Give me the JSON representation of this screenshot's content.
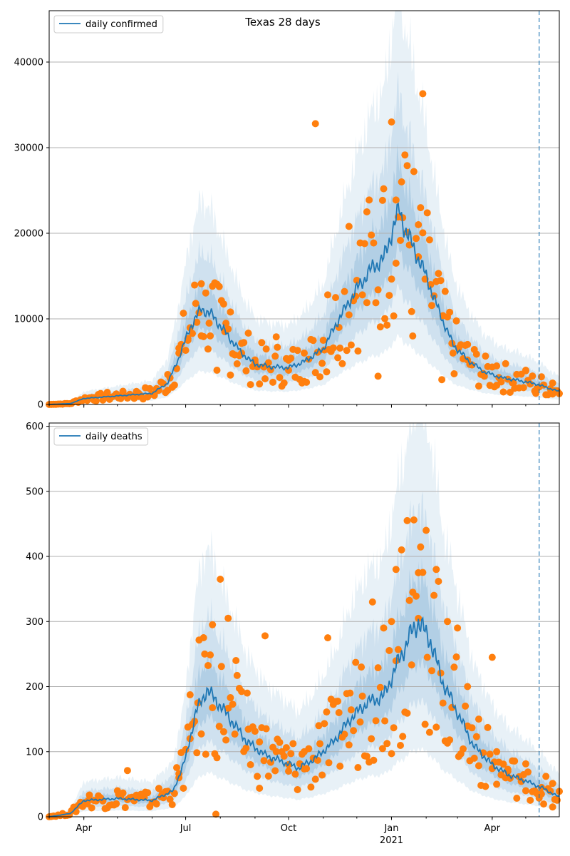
{
  "chart_data": [
    {
      "type": "line",
      "title": "Texas 28 days",
      "legend": {
        "label": "daily confirmed",
        "placement": "top-left"
      },
      "ylim": [
        0,
        46000
      ],
      "yticks": [
        0,
        10000,
        20000,
        30000,
        40000
      ],
      "grid": "y",
      "x_range": [
        "2020-03-01",
        "2021-05-31"
      ],
      "x_ticks": [
        {
          "date": "2020-04-01",
          "label": "Apr"
        },
        {
          "date": "2020-07-01",
          "label": "Jul"
        },
        {
          "date": "2020-10-01",
          "label": "Oct"
        },
        {
          "date": "2021-01-01",
          "label": "Jan"
        },
        {
          "date": "2021-04-01",
          "label": "Apr"
        }
      ],
      "vline_date": "2021-05-13",
      "line_keypoints": [
        [
          "2020-03-01",
          0
        ],
        [
          "2020-03-20",
          100
        ],
        [
          "2020-04-01",
          700
        ],
        [
          "2020-05-01",
          1000
        ],
        [
          "2020-06-01",
          1300
        ],
        [
          "2020-06-15",
          2500
        ],
        [
          "2020-06-25",
          5500
        ],
        [
          "2020-07-05",
          9000
        ],
        [
          "2020-07-15",
          11200
        ],
        [
          "2020-07-25",
          10400
        ],
        [
          "2020-08-05",
          8500
        ],
        [
          "2020-08-20",
          6000
        ],
        [
          "2020-09-01",
          4700
        ],
        [
          "2020-09-15",
          4400
        ],
        [
          "2020-10-01",
          4300
        ],
        [
          "2020-10-15",
          5000
        ],
        [
          "2020-11-01",
          6500
        ],
        [
          "2020-11-15",
          10000
        ],
        [
          "2020-12-01",
          13500
        ],
        [
          "2020-12-15",
          16000
        ],
        [
          "2020-12-25",
          17000
        ],
        [
          "2021-01-01",
          20000
        ],
        [
          "2021-01-08",
          22800
        ],
        [
          "2021-01-13",
          20500
        ],
        [
          "2021-01-20",
          18500
        ],
        [
          "2021-02-01",
          15000
        ],
        [
          "2021-02-12",
          11000
        ],
        [
          "2021-02-25",
          7000
        ],
        [
          "2021-03-10",
          5200
        ],
        [
          "2021-03-25",
          3800
        ],
        [
          "2021-04-10",
          3100
        ],
        [
          "2021-04-25",
          2800
        ],
        [
          "2021-05-10",
          2400
        ],
        [
          "2021-05-31",
          1500
        ]
      ],
      "points": [
        [
          "2020-04-10",
          800
        ],
        [
          "2020-04-20",
          1000
        ],
        [
          "2020-05-05",
          1100
        ],
        [
          "2020-05-20",
          1300
        ],
        [
          "2020-06-05",
          1600
        ],
        [
          "2020-06-15",
          3500
        ],
        [
          "2020-06-25",
          6000
        ],
        [
          "2020-07-03",
          7500
        ],
        [
          "2020-07-10",
          11800
        ],
        [
          "2020-07-15",
          14100
        ],
        [
          "2020-07-22",
          9500
        ],
        [
          "2020-07-29",
          4000
        ],
        [
          "2020-08-05",
          8500
        ],
        [
          "2020-08-10",
          10800
        ],
        [
          "2020-08-20",
          6000
        ],
        [
          "2020-09-01",
          5200
        ],
        [
          "2020-09-10",
          3000
        ],
        [
          "2020-09-20",
          7900
        ],
        [
          "2020-10-01",
          4000
        ],
        [
          "2020-10-15",
          6000
        ],
        [
          "2020-10-25",
          32800
        ],
        [
          "2020-11-01",
          7500
        ],
        [
          "2020-11-05",
          12800
        ],
        [
          "2020-11-15",
          9000
        ],
        [
          "2020-11-24",
          20800
        ],
        [
          "2020-12-01",
          14500
        ],
        [
          "2020-12-10",
          22500
        ],
        [
          "2020-12-20",
          3300
        ],
        [
          "2020-12-25",
          25200
        ],
        [
          "2021-01-01",
          33000
        ],
        [
          "2021-01-05",
          16500
        ],
        [
          "2021-01-10",
          26000
        ],
        [
          "2021-01-15",
          27900
        ],
        [
          "2021-01-20",
          8000
        ],
        [
          "2021-01-25",
          21000
        ],
        [
          "2021-01-29",
          36300
        ],
        [
          "2021-02-05",
          14000
        ],
        [
          "2021-02-15",
          2900
        ],
        [
          "2021-02-25",
          6000
        ],
        [
          "2021-03-10",
          5200
        ],
        [
          "2021-03-25",
          3300
        ],
        [
          "2021-04-05",
          4500
        ],
        [
          "2021-04-20",
          2500
        ],
        [
          "2021-05-01",
          4000
        ],
        [
          "2021-05-10",
          1300
        ],
        [
          "2021-05-25",
          2500
        ]
      ]
    },
    {
      "type": "line",
      "legend": {
        "label": "daily deaths",
        "placement": "top-left"
      },
      "ylim": [
        0,
        605
      ],
      "yticks": [
        0,
        100,
        200,
        300,
        400,
        500,
        600
      ],
      "grid": "y",
      "x_range": [
        "2020-03-01",
        "2021-05-31"
      ],
      "x_ticks": [
        {
          "date": "2020-04-01",
          "label": "Apr"
        },
        {
          "date": "2020-07-01",
          "label": "Jul"
        },
        {
          "date": "2020-10-01",
          "label": "Oct"
        },
        {
          "date": "2021-01-01",
          "label": "Jan"
        },
        {
          "date": "2021-04-01",
          "label": "Apr"
        }
      ],
      "x_year_label": "2021",
      "vline_date": "2021-05-13",
      "line_keypoints": [
        [
          "2020-03-01",
          0
        ],
        [
          "2020-03-20",
          5
        ],
        [
          "2020-04-01",
          25
        ],
        [
          "2020-05-01",
          28
        ],
        [
          "2020-06-01",
          25
        ],
        [
          "2020-06-20",
          40
        ],
        [
          "2020-07-01",
          90
        ],
        [
          "2020-07-10",
          160
        ],
        [
          "2020-07-20",
          195
        ],
        [
          "2020-07-30",
          175
        ],
        [
          "2020-08-10",
          150
        ],
        [
          "2020-08-25",
          115
        ],
        [
          "2020-09-10",
          95
        ],
        [
          "2020-09-25",
          85
        ],
        [
          "2020-10-10",
          75
        ],
        [
          "2020-10-25",
          90
        ],
        [
          "2020-11-10",
          115
        ],
        [
          "2020-11-25",
          150
        ],
        [
          "2020-12-10",
          175
        ],
        [
          "2020-12-25",
          185
        ],
        [
          "2021-01-05",
          230
        ],
        [
          "2021-01-18",
          280
        ],
        [
          "2021-01-25",
          300
        ],
        [
          "2021-02-05",
          270
        ],
        [
          "2021-02-15",
          210
        ],
        [
          "2021-03-01",
          160
        ],
        [
          "2021-03-15",
          110
        ],
        [
          "2021-04-01",
          80
        ],
        [
          "2021-04-15",
          65
        ],
        [
          "2021-05-01",
          55
        ],
        [
          "2021-05-15",
          45
        ],
        [
          "2021-05-31",
          30
        ]
      ],
      "points": [
        [
          "2020-04-05",
          25
        ],
        [
          "2020-04-15",
          30
        ],
        [
          "2020-05-01",
          40
        ],
        [
          "2020-05-10",
          71
        ],
        [
          "2020-05-25",
          30
        ],
        [
          "2020-06-10",
          35
        ],
        [
          "2020-06-25",
          60
        ],
        [
          "2020-07-05",
          120
        ],
        [
          "2020-07-12",
          175
        ],
        [
          "2020-07-18",
          250
        ],
        [
          "2020-07-25",
          295
        ],
        [
          "2020-07-28",
          4
        ],
        [
          "2020-08-01",
          365
        ],
        [
          "2020-08-08",
          305
        ],
        [
          "2020-08-15",
          240
        ],
        [
          "2020-08-25",
          190
        ],
        [
          "2020-09-05",
          115
        ],
        [
          "2020-09-10",
          278
        ],
        [
          "2020-09-20",
          100
        ],
        [
          "2020-10-01",
          70
        ],
        [
          "2020-10-15",
          100
        ],
        [
          "2020-10-28",
          140
        ],
        [
          "2020-11-05",
          275
        ],
        [
          "2020-11-15",
          160
        ],
        [
          "2020-11-25",
          190
        ],
        [
          "2020-12-05",
          230
        ],
        [
          "2020-12-15",
          330
        ],
        [
          "2020-12-25",
          290
        ],
        [
          "2021-01-01",
          300
        ],
        [
          "2021-01-05",
          380
        ],
        [
          "2021-01-10",
          410
        ],
        [
          "2021-01-15",
          455
        ],
        [
          "2021-01-20",
          345
        ],
        [
          "2021-01-25",
          375
        ],
        [
          "2021-02-01",
          440
        ],
        [
          "2021-02-10",
          380
        ],
        [
          "2021-02-20",
          300
        ],
        [
          "2021-03-01",
          290
        ],
        [
          "2021-03-10",
          200
        ],
        [
          "2021-03-20",
          150
        ],
        [
          "2021-04-01",
          245
        ],
        [
          "2021-04-05",
          100
        ],
        [
          "2021-04-15",
          70
        ],
        [
          "2021-05-01",
          40
        ],
        [
          "2021-05-15",
          35
        ],
        [
          "2021-05-25",
          15
        ]
      ]
    }
  ]
}
